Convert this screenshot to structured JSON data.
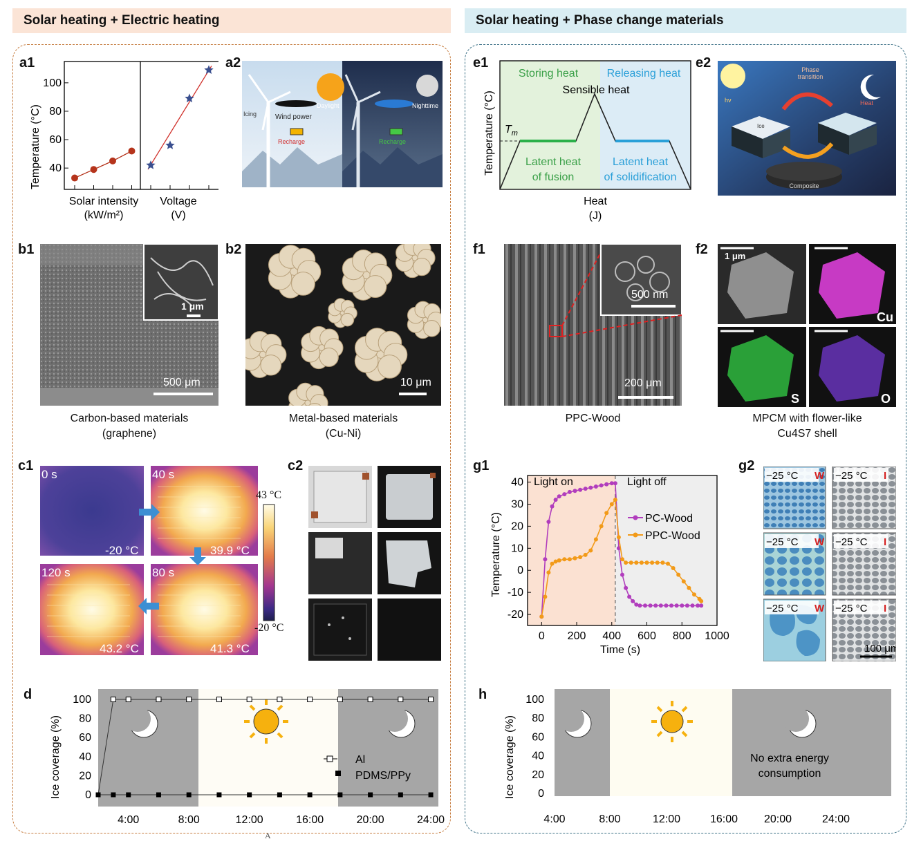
{
  "headers": {
    "left": "Solar heating + Electric heating",
    "right": "Solar heating + Phase change materials"
  },
  "colors": {
    "left_header_bg": "#fbe4d6",
    "right_header_bg": "#d9edf3",
    "left_frame": "#c57a3c",
    "right_frame": "#3a6f85",
    "red_series": "#b5341c",
    "blue_series": "#3a4f8f",
    "pc_wood": "#b13dbd",
    "ppc_wood": "#f29a18"
  },
  "panels": {
    "a1": "a1",
    "a2": "a2",
    "b1": "b1",
    "b2": "b2",
    "c1": "c1",
    "c2": "c2",
    "d": "d",
    "e1": "e1",
    "e2": "e2",
    "f1": "f1",
    "f2": "f2",
    "g1": "g1",
    "g2": "g2",
    "h": "h"
  },
  "a1": {
    "ylabel": "Temperature (°C)",
    "yticks": [
      "40",
      "60",
      "80",
      "100"
    ],
    "xlabel_left": "Solar intensity",
    "xunit_left": "(kW/m²)",
    "xlabel_right": "Voltage",
    "xunit_right": "(V)"
  },
  "a2": {
    "labels": [
      "Icing",
      "Wind power",
      "Recharge",
      "Daylight",
      "Nighttime",
      "Recharge"
    ]
  },
  "b1": {
    "scale_main": "500 μm",
    "scale_inset": "1 μm",
    "caption1": "Carbon-based materials",
    "caption2": "(graphene)"
  },
  "b2": {
    "scale": "10 μm",
    "caption1": "Metal-based materials",
    "caption2": "(Cu-Ni)"
  },
  "c1": {
    "times": [
      "0 s",
      "40 s",
      "120 s",
      "80 s"
    ],
    "temps": [
      "-20 °C",
      "39.9 °C",
      "43.2 °C",
      "41.3 °C"
    ],
    "cbar_max": "43 °C",
    "cbar_min": "-20 °C"
  },
  "d": {
    "ylabel": "Ice coverage (%)",
    "yticks": [
      "0",
      "20",
      "40",
      "60",
      "80",
      "100"
    ],
    "xticks": [
      "4:00",
      "8:00",
      "12:00",
      "16:00",
      "20:00",
      "24:00"
    ],
    "legend": [
      "Al",
      "PDMS/PPy"
    ],
    "below_label": "A"
  },
  "e1": {
    "storing": "Storing heat",
    "releasing": "Releasing heat",
    "sensible": "Sensible heat",
    "tm": "T",
    "tm_sub": "m",
    "latent_fusion_1": "Latent heat",
    "latent_fusion_2": "of fusion",
    "latent_solid_1": "Latent heat",
    "latent_solid_2": "of solidification",
    "ylabel": "Temperature (°C)",
    "xlabel": "Heat",
    "xunit": "(J)"
  },
  "e2": {
    "phase": "Phase",
    "transition": "transition",
    "heat": "Heat",
    "hv": "hv",
    "ice": "Ice",
    "composite": "Composite"
  },
  "f1": {
    "scale_inset": "500 nm",
    "scale_main": "200 μm",
    "caption": "PPC-Wood"
  },
  "f2": {
    "scale": "1 μm",
    "elements": [
      "Cu",
      "S",
      "O"
    ],
    "caption1": "MPCM with flower-like",
    "caption2": "Cu4S7 shell"
  },
  "g1": {
    "light_on": "Light on",
    "light_off": "Light off",
    "ylabel": "Temperature (°C)",
    "xlabel": "Time (s)",
    "xticks": [
      "0",
      "200",
      "400",
      "600",
      "800",
      "1000"
    ],
    "yticks": [
      "-20",
      "-10",
      "0",
      "10",
      "20",
      "30",
      "40"
    ],
    "legend": [
      "PC-Wood",
      "PPC-Wood"
    ]
  },
  "g2": {
    "temp": "−25 °C",
    "tags": [
      "W",
      "I"
    ],
    "scale": "100 μm"
  },
  "h": {
    "ylabel": "Ice coverage (%)",
    "yticks": [
      "0",
      "20",
      "40",
      "60",
      "80",
      "100"
    ],
    "xticks": [
      "4:00",
      "8:00",
      "12:00",
      "16:00",
      "20:00",
      "24:00"
    ],
    "note1": "No extra energy",
    "note2": "consumption"
  },
  "chart_data": [
    {
      "type": "scatter",
      "id": "a1-solar",
      "ylabel": "Temperature (°C)",
      "xlabel": "Solar intensity (kW/m²)",
      "ylim": [
        25,
        115
      ],
      "series": [
        {
          "values": [
            33,
            39,
            45,
            52
          ]
        }
      ]
    },
    {
      "type": "scatter",
      "id": "a1-voltage",
      "xlabel": "Voltage (V)",
      "ylim": [
        25,
        115
      ],
      "series": [
        {
          "values": [
            42,
            56,
            89,
            109
          ]
        }
      ]
    },
    {
      "type": "line",
      "id": "g1",
      "xlabel": "Time (s)",
      "ylabel": "Temperature (°C)",
      "xlim": [
        -80,
        1000
      ],
      "ylim": [
        -25,
        43
      ],
      "series": [
        {
          "name": "PC-Wood",
          "x": [
            0,
            20,
            40,
            60,
            80,
            100,
            130,
            160,
            190,
            220,
            250,
            280,
            310,
            340,
            370,
            400,
            420,
            440,
            460,
            480,
            500,
            520,
            540,
            560,
            590,
            620,
            650,
            680,
            710,
            740,
            770,
            800,
            830,
            860,
            890,
            910
          ],
          "y": [
            -21,
            5,
            22,
            29,
            32,
            33.5,
            34.5,
            35.5,
            36,
            36.5,
            37,
            37.5,
            38,
            38.5,
            39,
            39.5,
            39.5,
            10,
            -2,
            -8,
            -12,
            -14,
            -15.5,
            -16,
            -16,
            -16,
            -16,
            -16,
            -16,
            -16,
            -16,
            -16,
            -16,
            -16,
            -16,
            -16
          ]
        },
        {
          "name": "PPC-Wood",
          "x": [
            0,
            20,
            40,
            60,
            80,
            100,
            130,
            160,
            190,
            220,
            250,
            280,
            310,
            340,
            370,
            400,
            420,
            440,
            460,
            480,
            510,
            540,
            570,
            600,
            630,
            660,
            690,
            720,
            750,
            780,
            810,
            840,
            870,
            900,
            910
          ],
          "y": [
            -21,
            -12,
            -1,
            3,
            4,
            4.5,
            5,
            5,
            5.5,
            6,
            7,
            9,
            14,
            20,
            26,
            30,
            32,
            15,
            5,
            3.5,
            3.5,
            3.5,
            3.5,
            3.5,
            3.5,
            3.5,
            3.5,
            3,
            1,
            -2,
            -5,
            -8,
            -11,
            -13,
            -14
          ]
        }
      ]
    },
    {
      "type": "scatter",
      "id": "d",
      "ylabel": "Ice coverage (%)",
      "ylim": [
        0,
        100
      ],
      "series": [
        {
          "name": "Al",
          "x": [
            2.0,
            3.0,
            4.0,
            6.0,
            8.0,
            10.0,
            12.0,
            14.0,
            16.0,
            18.0,
            20.0,
            22.0,
            24.0
          ],
          "y": [
            0,
            100,
            100,
            100,
            100,
            100,
            100,
            100,
            100,
            100,
            100,
            100,
            100
          ]
        },
        {
          "name": "PDMS/PPy",
          "x": [
            2.0,
            3.0,
            4.0,
            6.0,
            8.0,
            10.0,
            12.0,
            14.0,
            16.0,
            18.0,
            20.0,
            22.0,
            24.0
          ],
          "y": [
            0,
            0,
            0,
            0,
            0,
            0,
            0,
            0,
            0,
            0,
            0,
            0,
            0
          ]
        }
      ]
    }
  ]
}
